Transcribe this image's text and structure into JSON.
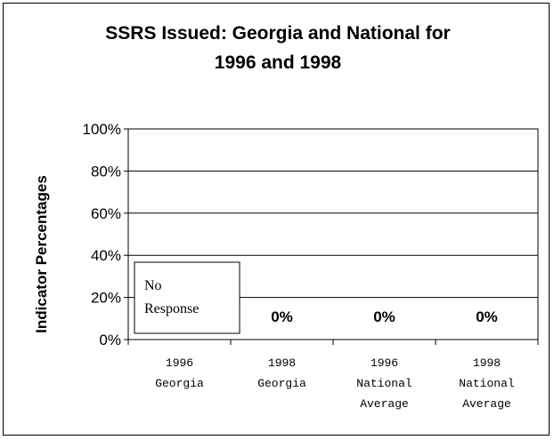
{
  "chart_data": {
    "type": "bar",
    "title": "SSRS Issued: Georgia and National for 1996 and 1998",
    "title_lines": [
      "SSRS Issued: Georgia and National for",
      "1996 and 1998"
    ],
    "ylabel": "Indicator Percentages",
    "xlabel": "",
    "ylim": [
      0,
      100
    ],
    "y_ticks": [
      "0%",
      "20%",
      "40%",
      "60%",
      "80%",
      "100%"
    ],
    "grid": true,
    "categories": [
      [
        "1996",
        "Georgia"
      ],
      [
        "1998",
        "Georgia"
      ],
      [
        "1996",
        "National",
        "Average"
      ],
      [
        "1998",
        "National",
        "Average"
      ]
    ],
    "values": [
      null,
      0,
      0,
      0
    ],
    "data_labels": [
      "",
      "0%",
      "0%",
      "0%"
    ],
    "annotation": {
      "lines": [
        "No",
        "Response"
      ],
      "category_index": 0
    },
    "colors": {
      "grid": "#000000",
      "plot_background": "#ffffff"
    }
  }
}
